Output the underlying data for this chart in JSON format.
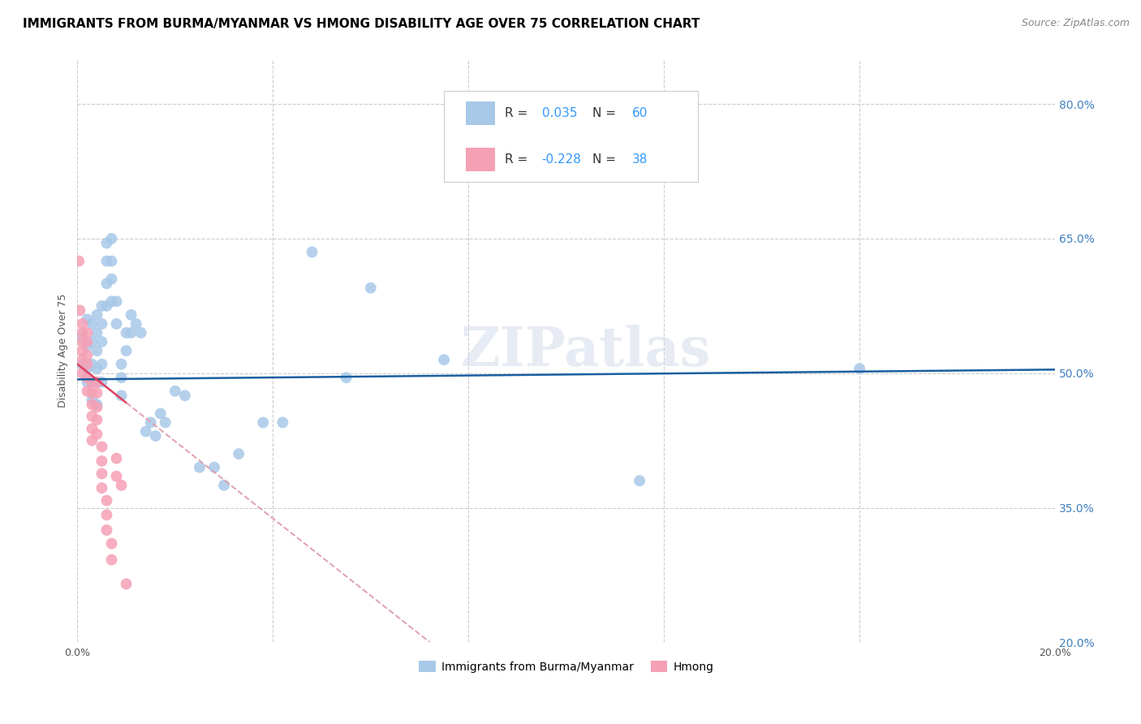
{
  "title": "IMMIGRANTS FROM BURMA/MYANMAR VS HMONG DISABILITY AGE OVER 75 CORRELATION CHART",
  "source": "Source: ZipAtlas.com",
  "ylabel": "Disability Age Over 75",
  "xlim": [
    0.0,
    0.2
  ],
  "ylim": [
    0.2,
    0.85
  ],
  "xticks": [
    0.0,
    0.04,
    0.08,
    0.12,
    0.16,
    0.2
  ],
  "xticklabels": [
    "0.0%",
    "",
    "",
    "",
    "",
    "20.0%"
  ],
  "ytick_right": [
    0.8,
    0.65,
    0.5,
    0.35,
    0.2
  ],
  "ytick_right_labels": [
    "80.0%",
    "65.0%",
    "50.0%",
    "35.0%",
    "20.0%"
  ],
  "blue_r": "0.035",
  "blue_n": "60",
  "pink_r": "-0.228",
  "pink_n": "38",
  "blue_color": "#a8c8e8",
  "pink_color": "#f5a0b5",
  "blue_line_color": "#1a5fa0",
  "pink_line_color": "#e04060",
  "pink_dash_color": "#e0a0b0",
  "watermark": "ZIPatlas",
  "blue_scatter_x": [
    0.001,
    0.001,
    0.002,
    0.002,
    0.002,
    0.002,
    0.003,
    0.003,
    0.003,
    0.003,
    0.003,
    0.004,
    0.004,
    0.004,
    0.004,
    0.004,
    0.004,
    0.005,
    0.005,
    0.005,
    0.005,
    0.005,
    0.006,
    0.006,
    0.006,
    0.006,
    0.007,
    0.007,
    0.007,
    0.007,
    0.008,
    0.008,
    0.009,
    0.009,
    0.009,
    0.01,
    0.01,
    0.011,
    0.011,
    0.012,
    0.013,
    0.014,
    0.015,
    0.016,
    0.017,
    0.018,
    0.02,
    0.022,
    0.025,
    0.028,
    0.03,
    0.033,
    0.038,
    0.042,
    0.048,
    0.055,
    0.06,
    0.075,
    0.115,
    0.16
  ],
  "blue_scatter_y": [
    0.54,
    0.51,
    0.56,
    0.53,
    0.505,
    0.49,
    0.555,
    0.535,
    0.51,
    0.49,
    0.47,
    0.565,
    0.545,
    0.525,
    0.505,
    0.49,
    0.465,
    0.575,
    0.555,
    0.535,
    0.51,
    0.49,
    0.645,
    0.625,
    0.6,
    0.575,
    0.65,
    0.625,
    0.605,
    0.58,
    0.58,
    0.555,
    0.51,
    0.495,
    0.475,
    0.545,
    0.525,
    0.565,
    0.545,
    0.555,
    0.545,
    0.435,
    0.445,
    0.43,
    0.455,
    0.445,
    0.48,
    0.475,
    0.395,
    0.395,
    0.375,
    0.41,
    0.445,
    0.445,
    0.635,
    0.495,
    0.595,
    0.515,
    0.38,
    0.505
  ],
  "pink_scatter_x": [
    0.0003,
    0.0005,
    0.001,
    0.001,
    0.001,
    0.001,
    0.001,
    0.001,
    0.002,
    0.002,
    0.002,
    0.002,
    0.002,
    0.002,
    0.003,
    0.003,
    0.003,
    0.003,
    0.003,
    0.003,
    0.004,
    0.004,
    0.004,
    0.004,
    0.004,
    0.005,
    0.005,
    0.005,
    0.005,
    0.006,
    0.006,
    0.006,
    0.007,
    0.007,
    0.008,
    0.008,
    0.009,
    0.01
  ],
  "pink_scatter_y": [
    0.625,
    0.57,
    0.555,
    0.545,
    0.535,
    0.525,
    0.515,
    0.5,
    0.545,
    0.535,
    0.52,
    0.51,
    0.495,
    0.48,
    0.49,
    0.478,
    0.465,
    0.452,
    0.438,
    0.425,
    0.49,
    0.478,
    0.462,
    0.448,
    0.432,
    0.418,
    0.402,
    0.388,
    0.372,
    0.358,
    0.342,
    0.325,
    0.31,
    0.292,
    0.405,
    0.385,
    0.375,
    0.265
  ],
  "legend_label_blue": "Immigrants from Burma/Myanmar",
  "legend_label_pink": "Hmong",
  "title_fontsize": 11,
  "axis_label_fontsize": 9,
  "tick_fontsize": 9,
  "legend_fontsize": 11
}
